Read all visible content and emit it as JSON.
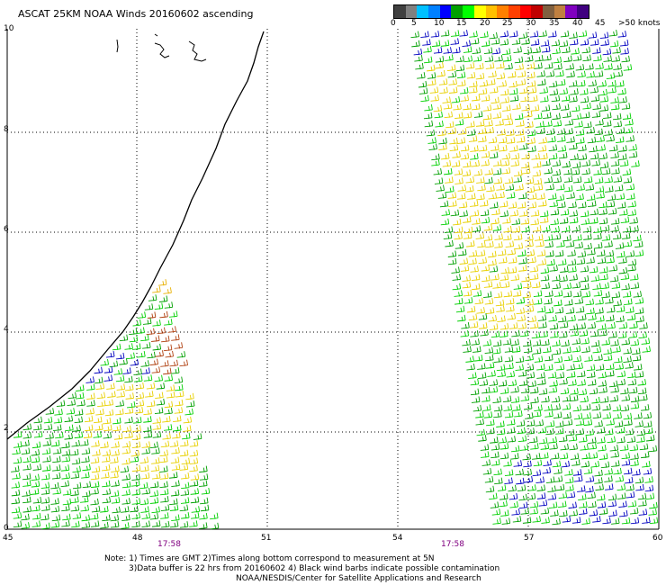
{
  "title": "ASCAT 25KM NOAA Winds 20160602 ascending",
  "colorbar": {
    "colors": [
      "#404040",
      "#808080",
      "#00c0ff",
      "#0080ff",
      "#0000ff",
      "#00a000",
      "#00ff00",
      "#ffff00",
      "#ffc000",
      "#ff8000",
      "#ff4000",
      "#ff0000",
      "#c00000",
      "#806040",
      "#c08040",
      "#8000c0",
      "#400080"
    ],
    "labels": [
      "0",
      "5",
      "10",
      "15",
      "20",
      "25",
      "30",
      "35",
      "40",
      "45",
      ">50 knots"
    ]
  },
  "map": {
    "lon_ticks": [
      "45",
      "48",
      "51",
      "54",
      "57",
      "60"
    ],
    "lat_ticks": [
      "10",
      "8",
      "6",
      "4",
      "2",
      "0"
    ],
    "pass_times": [
      "17:58",
      "17:58"
    ]
  },
  "notes": [
    "Note: 1) Times are GMT 2)Times along bottom correspond to measurement at 5N",
    "3)Data buffer is 22 hrs from 20160602 4) Black wind barbs indicate possible contamination",
    "NOAA/NESDIS/Center for Satellite Applications and Research"
  ]
}
